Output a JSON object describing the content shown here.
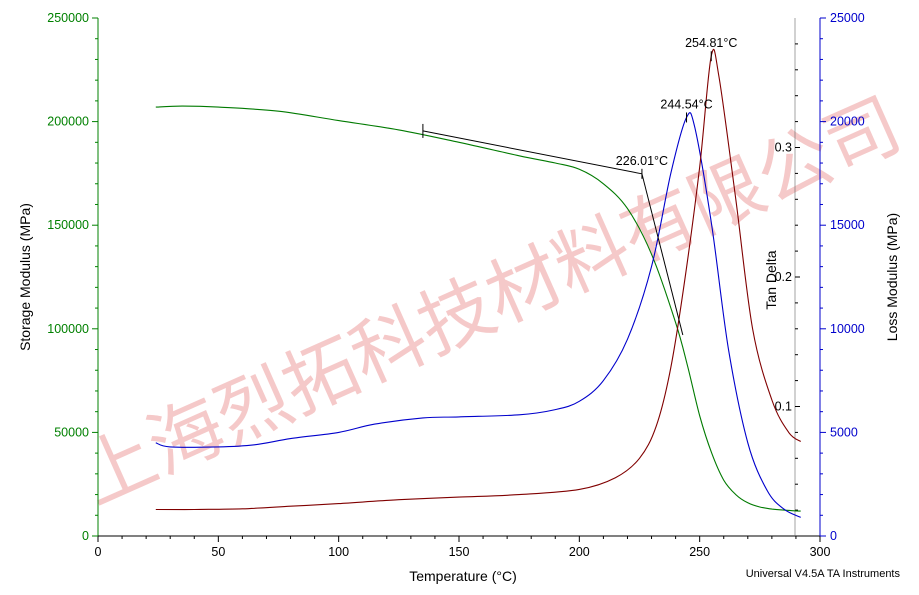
{
  "chart_data": {
    "type": "line",
    "xlabel": "Temperature (°C)",
    "xlim": [
      0,
      300
    ],
    "x_ticks": [
      0,
      50,
      100,
      150,
      200,
      250,
      300
    ],
    "axes": {
      "left": {
        "label": "Storage Modulus (MPa)",
        "color": "#008000",
        "lim": [
          0,
          250000
        ],
        "ticks": [
          0,
          50000,
          100000,
          150000,
          200000,
          250000
        ]
      },
      "right_inner": {
        "label": "Tan Delta",
        "color": "#800000",
        "lim": [
          0,
          0.4
        ],
        "ticks": [
          0.1,
          0.2,
          0.3
        ]
      },
      "right_outer": {
        "label": "Loss Modulus (MPa)",
        "color": "#0000cc",
        "lim": [
          0,
          25000
        ],
        "ticks": [
          0,
          5000,
          10000,
          15000,
          20000,
          25000
        ]
      }
    },
    "series": [
      {
        "name": "Storage Modulus (MPa)",
        "axis": "left",
        "color": "#007a00",
        "points": [
          [
            24,
            207000
          ],
          [
            35,
            207500
          ],
          [
            50,
            207000
          ],
          [
            75,
            205000
          ],
          [
            100,
            200500
          ],
          [
            125,
            196000
          ],
          [
            150,
            190000
          ],
          [
            175,
            183500
          ],
          [
            190,
            180000
          ],
          [
            200,
            177000
          ],
          [
            210,
            170000
          ],
          [
            220,
            158000
          ],
          [
            230,
            136000
          ],
          [
            240,
            103000
          ],
          [
            245,
            82000
          ],
          [
            250,
            58000
          ],
          [
            255,
            40000
          ],
          [
            260,
            27000
          ],
          [
            265,
            20000
          ],
          [
            270,
            16000
          ],
          [
            275,
            14000
          ],
          [
            280,
            13000
          ],
          [
            285,
            12500
          ],
          [
            292,
            12000
          ]
        ]
      },
      {
        "name": "Loss Modulus (MPa)",
        "axis": "right_outer",
        "color": "#0000cc",
        "points": [
          [
            24,
            4500
          ],
          [
            30,
            4300
          ],
          [
            50,
            4300
          ],
          [
            65,
            4400
          ],
          [
            80,
            4700
          ],
          [
            100,
            5000
          ],
          [
            115,
            5400
          ],
          [
            135,
            5700
          ],
          [
            150,
            5750
          ],
          [
            175,
            5850
          ],
          [
            190,
            6100
          ],
          [
            200,
            6500
          ],
          [
            210,
            7500
          ],
          [
            220,
            9500
          ],
          [
            230,
            13000
          ],
          [
            238,
            17500
          ],
          [
            244.54,
            20200
          ],
          [
            248,
            19700
          ],
          [
            255,
            15000
          ],
          [
            262,
            9000
          ],
          [
            270,
            4500
          ],
          [
            278,
            2200
          ],
          [
            285,
            1300
          ],
          [
            292,
            900
          ]
        ]
      },
      {
        "name": "Tan Delta",
        "axis": "right_inner",
        "color": "#800000",
        "points": [
          [
            24,
            0.0205
          ],
          [
            40,
            0.0205
          ],
          [
            60,
            0.021
          ],
          [
            80,
            0.023
          ],
          [
            100,
            0.025
          ],
          [
            125,
            0.028
          ],
          [
            150,
            0.03
          ],
          [
            175,
            0.032
          ],
          [
            200,
            0.036
          ],
          [
            215,
            0.045
          ],
          [
            225,
            0.06
          ],
          [
            232,
            0.085
          ],
          [
            238,
            0.13
          ],
          [
            244,
            0.2
          ],
          [
            250,
            0.285
          ],
          [
            254.81,
            0.3705
          ],
          [
            258,
            0.355
          ],
          [
            265,
            0.26
          ],
          [
            272,
            0.16
          ],
          [
            280,
            0.105
          ],
          [
            287,
            0.08
          ],
          [
            292,
            0.073
          ]
        ]
      }
    ],
    "annotations": [
      {
        "text": "254.81°C",
        "x": 254.81,
        "axis": "right_inner",
        "y": 0.3705
      },
      {
        "text": "244.54°C",
        "x": 244.54,
        "axis": "right_outer",
        "y": 20200
      },
      {
        "text": "226.01°C",
        "x": 226.01,
        "axis": "left",
        "y": 174800
      }
    ],
    "onset_tangents": [
      [
        [
          135,
          195500
        ],
        [
          226.01,
          174800
        ]
      ],
      [
        [
          226.01,
          174800
        ],
        [
          243,
          97000
        ]
      ]
    ],
    "onset_marker": {
      "x": 135,
      "y": 195500
    }
  },
  "footer": "Universal V4.5A TA Instruments",
  "watermark": "上海烈拓科技材料有限公司"
}
